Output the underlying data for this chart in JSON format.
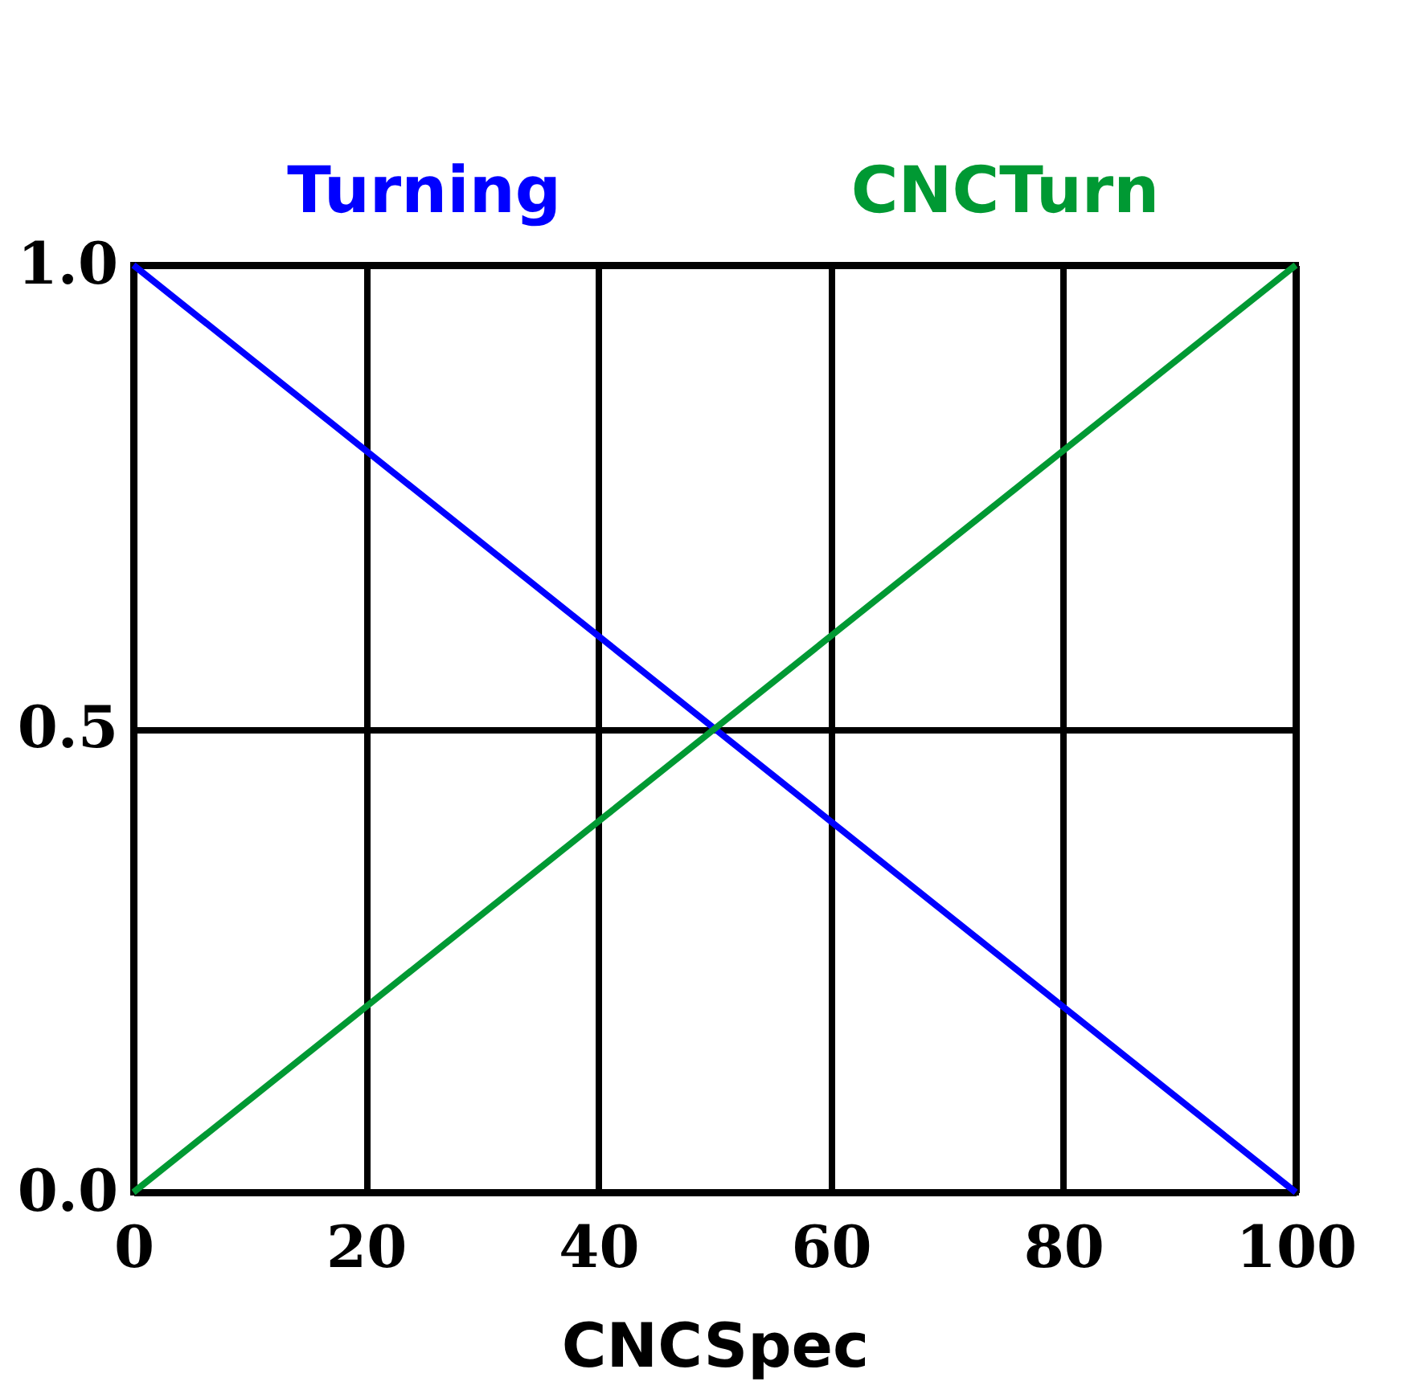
{
  "chart_data": {
    "type": "line",
    "xlabel": "CNCSpec",
    "x": [
      0,
      100
    ],
    "series": [
      {
        "name": "Turning",
        "color": "#0000ff",
        "values": [
          1.0,
          0.0
        ]
      },
      {
        "name": "CNCTurn",
        "color": "#009933",
        "values": [
          0.0,
          1.0
        ]
      }
    ],
    "xlim": [
      0,
      100
    ],
    "xticks": [
      0,
      20,
      40,
      60,
      80,
      100
    ],
    "ylim": [
      0,
      1
    ],
    "yticks": [
      {
        "value": 0,
        "label": "0.0"
      },
      0.5,
      {
        "value": 1,
        "label": "1.0"
      }
    ],
    "grid": true,
    "legend": "top",
    "line_style": "solid",
    "marker": "none"
  }
}
